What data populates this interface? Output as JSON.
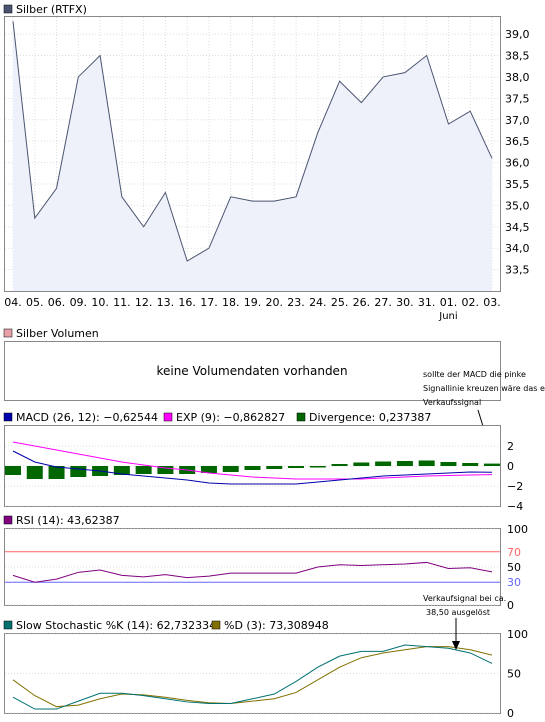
{
  "price": {
    "legend": "Silber (RTFX)",
    "legend_color": "#4a5470",
    "x_labels": [
      "04.",
      "05.",
      "06.",
      "09.",
      "10.",
      "11.",
      "12.",
      "13.",
      "16.",
      "17.",
      "18.",
      "19.",
      "20.",
      "23.",
      "24.",
      "25.",
      "26.",
      "27.",
      "30.",
      "31.",
      "01.",
      "02.",
      "03."
    ],
    "month_label": "Juni",
    "y_labels": [
      "39,0",
      "38,5",
      "38,0",
      "37,5",
      "37,0",
      "36,5",
      "36,0",
      "35,5",
      "35,0",
      "34,5",
      "34,0",
      "33,5"
    ]
  },
  "volume": {
    "legend": "Silber Volumen",
    "legend_color": "#e8a0a8",
    "message": "keine Volumendaten vorhanden",
    "annotation": [
      "sollte der MACD die pinke",
      "Signallinie kreuzen wäre das ein",
      "Verkaufssignal"
    ]
  },
  "macd": {
    "legend_macd": "MACD (26, 12): −0,62544",
    "legend_exp": "EXP (9): −0,862827",
    "legend_div": "Divergence: 0,237387",
    "color_macd": "#0000aa",
    "color_exp": "#ff00ff",
    "color_div": "#006600",
    "y_labels": [
      "2",
      "0",
      "−2",
      "−4"
    ]
  },
  "rsi": {
    "legend": "RSI (14): 43,62387",
    "legend_color": "#800080",
    "y_labels": [
      "100",
      "70",
      "50",
      "30",
      "0"
    ],
    "upper_color": "#ff6666",
    "lower_color": "#6666ff"
  },
  "stoch": {
    "legend_k": "Slow Stochastic %K (14): 62,732334",
    "legend_d": "%D (3): 73,308948",
    "color_k": "#007070",
    "color_d": "#807000",
    "y_labels": [
      "100",
      "50",
      "0"
    ],
    "annotation": [
      "Verkaufsignal bei ca.",
      "38,50 ausgelöst"
    ]
  },
  "chart_data": [
    {
      "type": "area",
      "title": "Silber (RTFX)",
      "categories": [
        "04.",
        "05.",
        "06.",
        "09.",
        "10.",
        "11.",
        "12.",
        "13.",
        "16.",
        "17.",
        "18.",
        "19.",
        "20.",
        "23.",
        "24.",
        "25.",
        "26.",
        "27.",
        "30.",
        "31.",
        "01.",
        "02.",
        "03."
      ],
      "series": [
        {
          "name": "Silber (RTFX)",
          "values": [
            39.3,
            34.7,
            35.4,
            38.0,
            38.5,
            35.2,
            34.5,
            35.3,
            33.7,
            34.0,
            35.2,
            35.1,
            35.1,
            35.2,
            36.7,
            37.9,
            37.4,
            38.0,
            38.1,
            38.5,
            36.9,
            37.2,
            36.1
          ]
        }
      ],
      "ylim": [
        33.0,
        39.4
      ]
    },
    {
      "type": "line",
      "title": "MACD",
      "categories": [
        "04.",
        "05.",
        "06.",
        "09.",
        "10.",
        "11.",
        "12.",
        "13.",
        "16.",
        "17.",
        "18.",
        "19.",
        "20.",
        "23.",
        "24.",
        "25.",
        "26.",
        "27.",
        "30.",
        "31.",
        "01.",
        "02.",
        "03."
      ],
      "series": [
        {
          "name": "MACD (26, 12)",
          "values": [
            1.5,
            0.4,
            -0.1,
            -0.3,
            -0.5,
            -0.8,
            -1.0,
            -1.2,
            -1.4,
            -1.7,
            -1.8,
            -1.8,
            -1.8,
            -1.8,
            -1.6,
            -1.4,
            -1.2,
            -1.0,
            -0.9,
            -0.8,
            -0.7,
            -0.6,
            -0.63
          ]
        },
        {
          "name": "EXP (9)",
          "values": [
            2.4,
            2.0,
            1.6,
            1.2,
            0.8,
            0.4,
            0.1,
            -0.2,
            -0.4,
            -0.7,
            -0.9,
            -1.1,
            -1.2,
            -1.3,
            -1.3,
            -1.3,
            -1.3,
            -1.2,
            -1.1,
            -1.0,
            -0.95,
            -0.9,
            -0.86
          ]
        },
        {
          "name": "Divergence",
          "values": [
            -0.9,
            -1.3,
            -1.3,
            -1.1,
            -1.0,
            -0.9,
            -0.8,
            -0.8,
            -0.8,
            -0.7,
            -0.6,
            -0.4,
            -0.3,
            -0.2,
            -0.15,
            0.2,
            0.35,
            0.45,
            0.5,
            0.55,
            0.4,
            0.3,
            0.24
          ]
        }
      ],
      "ylim": [
        -4,
        4
      ]
    },
    {
      "type": "line",
      "title": "RSI",
      "categories": [
        "04.",
        "05.",
        "06.",
        "09.",
        "10.",
        "11.",
        "12.",
        "13.",
        "16.",
        "17.",
        "18.",
        "19.",
        "20.",
        "23.",
        "24.",
        "25.",
        "26.",
        "27.",
        "30.",
        "31.",
        "01.",
        "02.",
        "03."
      ],
      "series": [
        {
          "name": "RSI (14)",
          "values": [
            39,
            30,
            34,
            43,
            46,
            39,
            37,
            40,
            36,
            38,
            42,
            42,
            42,
            42,
            50,
            53,
            52,
            53,
            54,
            56,
            48,
            49,
            43.6
          ]
        }
      ],
      "ylim": [
        0,
        100
      ],
      "reference_lines": [
        70,
        30
      ]
    },
    {
      "type": "line",
      "title": "Slow Stochastic",
      "categories": [
        "04.",
        "05.",
        "06.",
        "09.",
        "10.",
        "11.",
        "12.",
        "13.",
        "16.",
        "17.",
        "18.",
        "19.",
        "20.",
        "23.",
        "24.",
        "25.",
        "26.",
        "27.",
        "30.",
        "31.",
        "01.",
        "02.",
        "03."
      ],
      "series": [
        {
          "name": "Slow Stochastic %K (14)",
          "values": [
            20,
            5,
            5,
            15,
            25,
            25,
            22,
            18,
            14,
            12,
            12,
            18,
            24,
            40,
            58,
            72,
            78,
            78,
            86,
            84,
            82,
            76,
            62.7
          ]
        },
        {
          "name": "%D (3)",
          "values": [
            42,
            22,
            8,
            10,
            18,
            24,
            23,
            20,
            16,
            13,
            12,
            15,
            18,
            26,
            42,
            58,
            70,
            76,
            80,
            84,
            84,
            80,
            73.3
          ]
        }
      ],
      "ylim": [
        0,
        100
      ]
    }
  ]
}
